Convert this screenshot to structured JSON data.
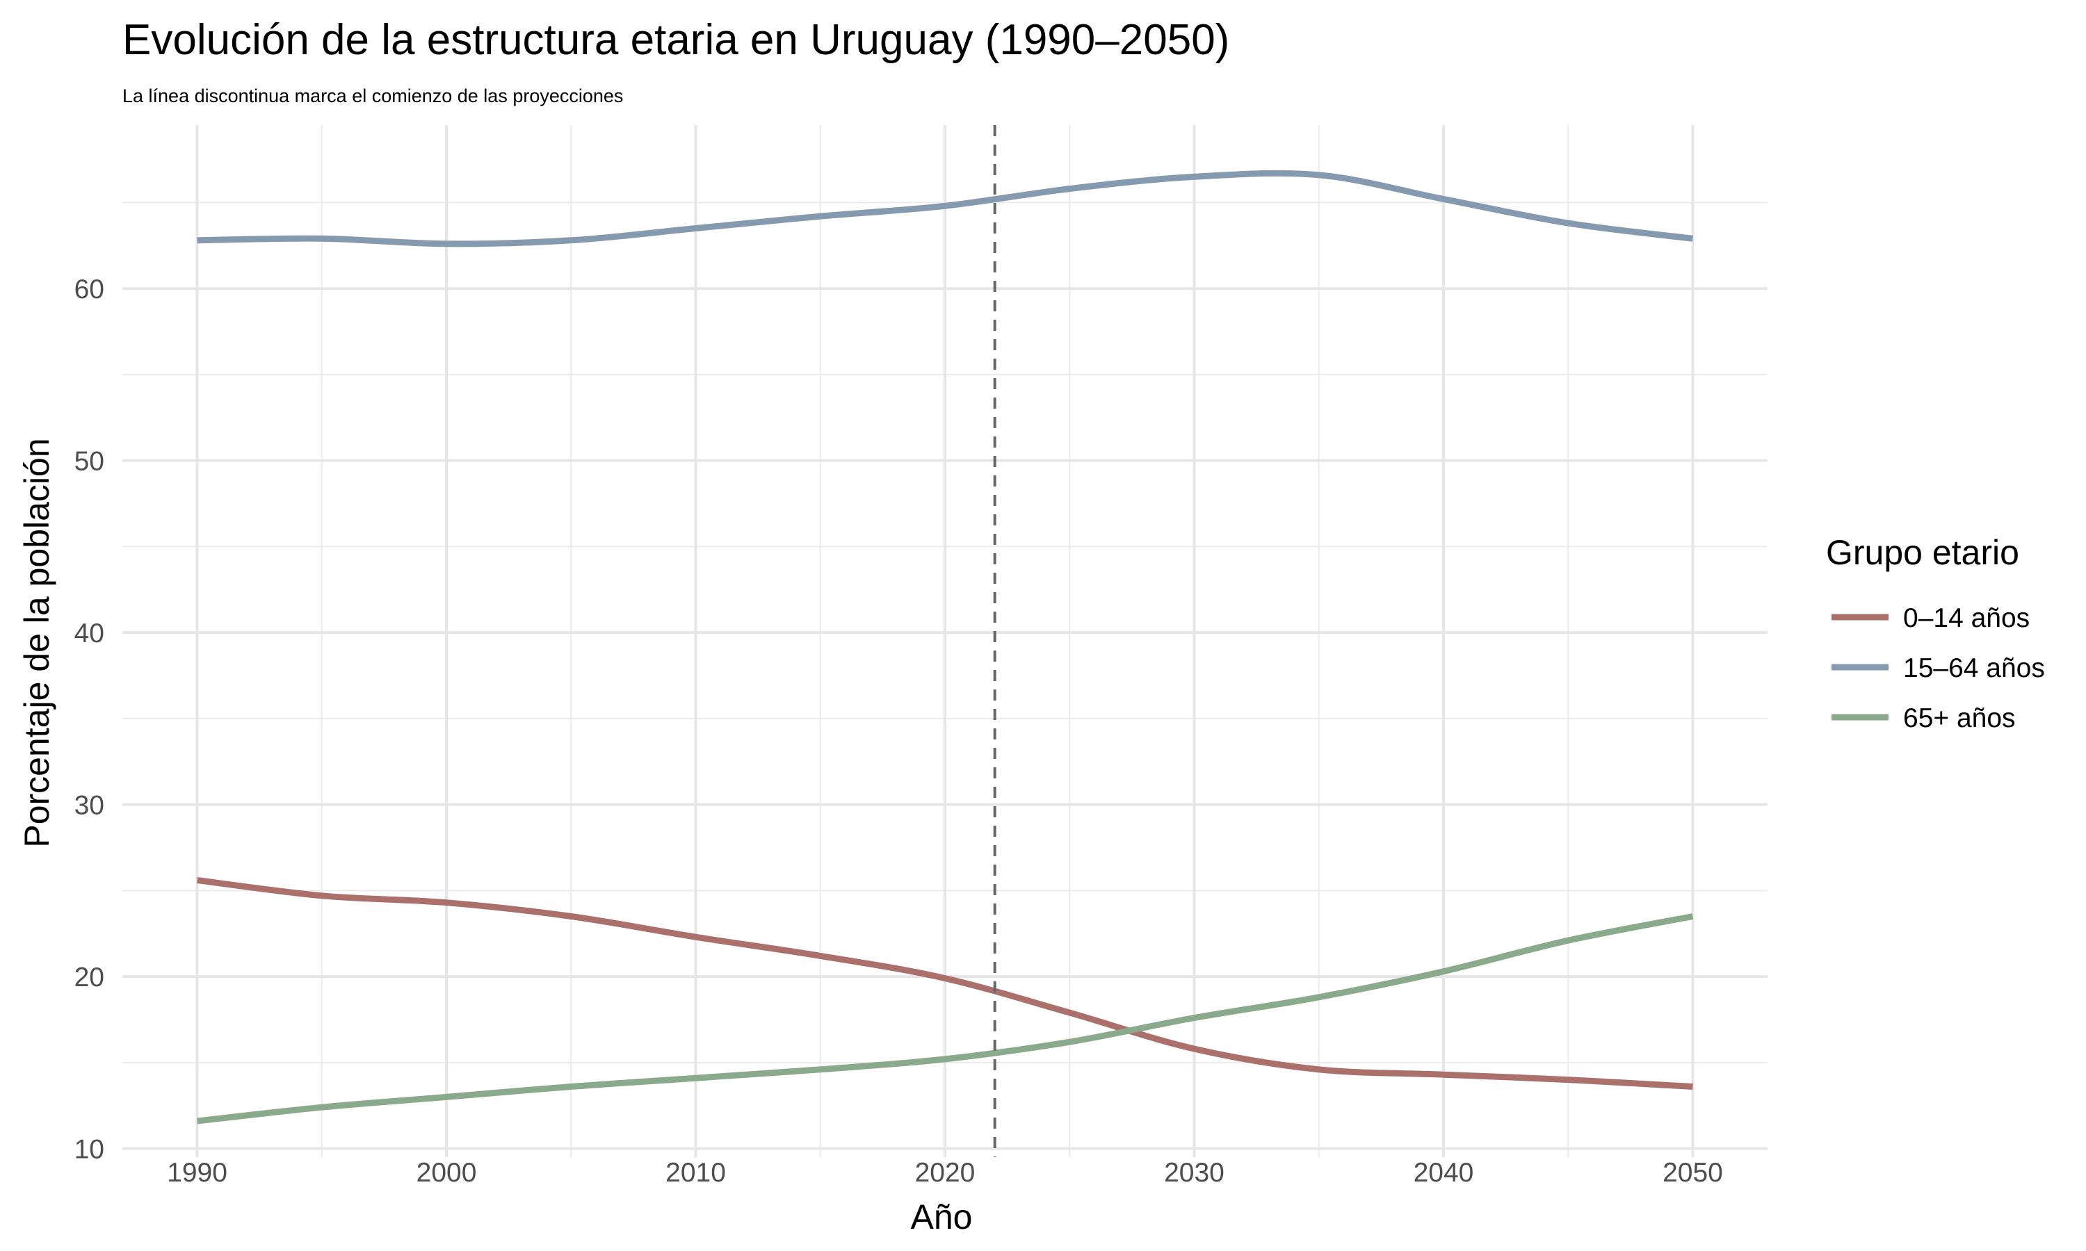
{
  "chart_data": {
    "type": "line",
    "title": "Evolución de la estructura etaria en Uruguay (1990–2050)",
    "subtitle": "La línea discontinua marca el comienzo de las proyecciones",
    "xlabel": "Año",
    "ylabel": "Porcentaje de la población",
    "xlim": [
      1987,
      2053
    ],
    "ylim": [
      9.5,
      69.5
    ],
    "x_ticks": [
      1990,
      2000,
      2010,
      2020,
      2030,
      2040,
      2050
    ],
    "y_ticks": [
      10,
      20,
      30,
      40,
      50,
      60
    ],
    "grid": true,
    "projection_start": 2022,
    "legend": {
      "title": "Grupo etario",
      "position": "right"
    },
    "x": [
      1990,
      1995,
      2000,
      2005,
      2010,
      2015,
      2020,
      2025,
      2030,
      2035,
      2040,
      2045,
      2050
    ],
    "series": [
      {
        "name": "0–14 años",
        "color": "#ab706c",
        "values": [
          25.6,
          24.7,
          24.3,
          23.5,
          22.3,
          21.2,
          19.9,
          17.9,
          15.8,
          14.6,
          14.3,
          14.0,
          13.6
        ]
      },
      {
        "name": "15–64 años",
        "color": "#859aae",
        "values": [
          62.8,
          62.9,
          62.6,
          62.8,
          63.5,
          64.2,
          64.8,
          65.8,
          66.5,
          66.6,
          65.2,
          63.8,
          62.9
        ]
      },
      {
        "name": "65+ años",
        "color": "#8aaa8b",
        "values": [
          11.6,
          12.4,
          13.0,
          13.6,
          14.1,
          14.6,
          15.2,
          16.2,
          17.6,
          18.8,
          20.3,
          22.1,
          23.5
        ]
      }
    ]
  }
}
